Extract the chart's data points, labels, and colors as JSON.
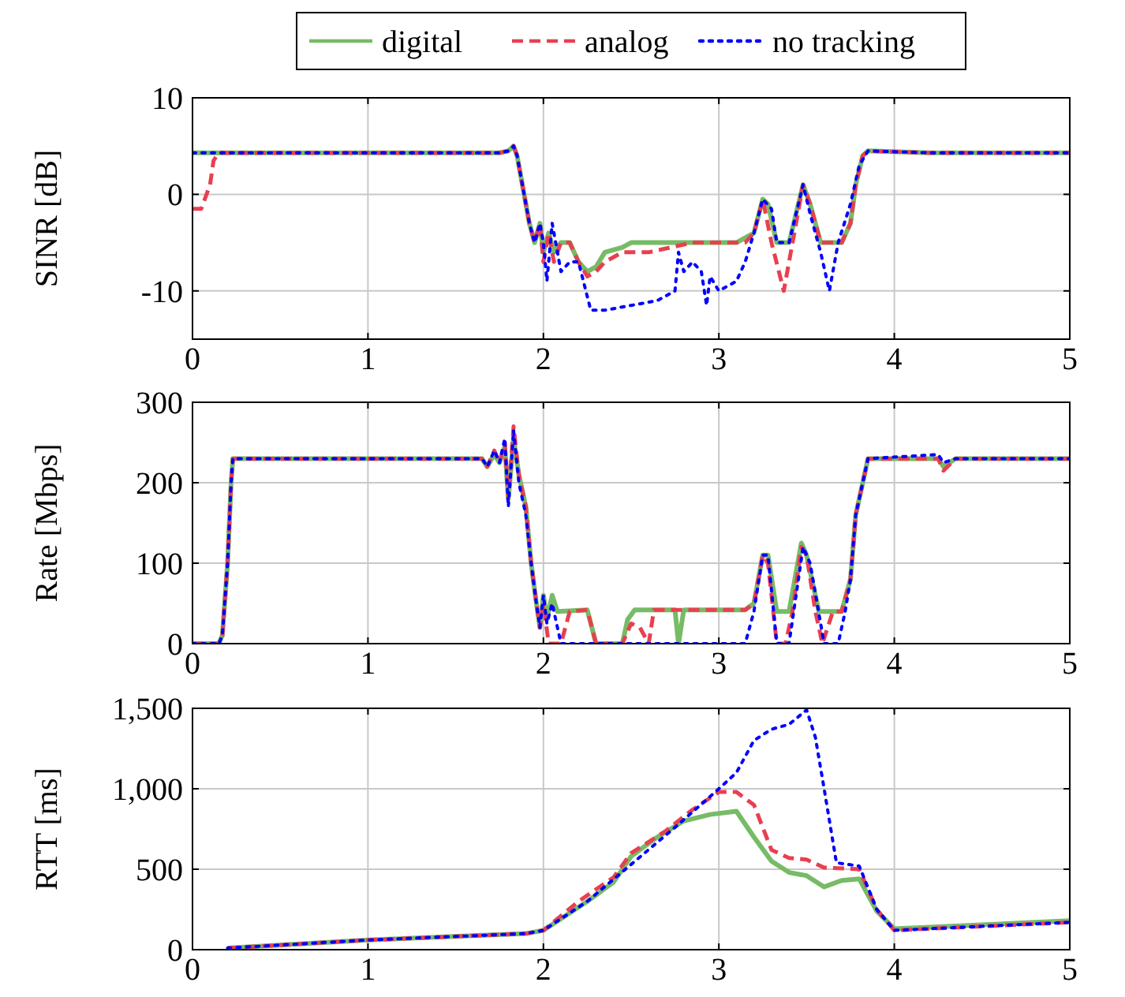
{
  "chart_data": [
    {
      "type": "line",
      "ylabel": "SINR [dB]",
      "xlim": [
        0,
        5
      ],
      "ylim": [
        -15,
        10
      ],
      "xticks": [
        0,
        1,
        2,
        3,
        4,
        5
      ],
      "yticks": [
        -10,
        0,
        10
      ],
      "grid": true,
      "legend": "top",
      "marker": "none",
      "series": [
        {
          "name": "digital",
          "color": "#77bb66",
          "line_style": "solid",
          "x": [
            0,
            0.3,
            0.6,
            0.9,
            1.2,
            1.5,
            1.75,
            1.8,
            1.83,
            1.85,
            1.88,
            1.92,
            1.95,
            1.98,
            2.0,
            2.03,
            2.06,
            2.1,
            2.15,
            2.2,
            2.25,
            2.3,
            2.35,
            2.45,
            2.5,
            2.6,
            2.8,
            3.0,
            3.1,
            3.2,
            3.25,
            3.28,
            3.33,
            3.4,
            3.48,
            3.52,
            3.58,
            3.7,
            3.75,
            3.78,
            3.82,
            3.85,
            4.2,
            4.6,
            5
          ],
          "values": [
            4.3,
            4.3,
            4.3,
            4.3,
            4.3,
            4.3,
            4.3,
            4.5,
            5,
            4,
            1,
            -3,
            -5,
            -3,
            -6,
            -4,
            -6,
            -5,
            -5,
            -7,
            -8,
            -7.5,
            -6,
            -5.5,
            -5,
            -5,
            -5,
            -5,
            -5,
            -4,
            -0.5,
            -1,
            -5,
            -5,
            1,
            -1,
            -5,
            -5,
            -3,
            1,
            4,
            4.5,
            4.3,
            4.3,
            4.3
          ]
        },
        {
          "name": "analog",
          "color": "#e8404f",
          "line_style": "dashed",
          "x": [
            0,
            0.05,
            0.08,
            0.1,
            0.12,
            0.15,
            0.5,
            1,
            1.5,
            1.75,
            1.8,
            1.83,
            1.85,
            1.88,
            1.92,
            1.95,
            1.98,
            2.0,
            2.03,
            2.06,
            2.1,
            2.15,
            2.2,
            2.25,
            2.3,
            2.35,
            2.45,
            2.5,
            2.6,
            2.85,
            3.0,
            3.15,
            3.2,
            3.25,
            3.3,
            3.37,
            3.42,
            3.48,
            3.52,
            3.58,
            3.7,
            3.75,
            3.78,
            3.82,
            3.85,
            4.2,
            4.6,
            5
          ],
          "values": [
            -1.5,
            -1.5,
            0,
            1,
            3.5,
            4.3,
            4.3,
            4.3,
            4.3,
            4.3,
            4.5,
            5,
            4,
            1,
            -3,
            -5,
            -3,
            -7,
            -4,
            -7,
            -5,
            -5,
            -7,
            -8.5,
            -8,
            -7,
            -6,
            -6,
            -6,
            -5,
            -5,
            -5,
            -4,
            -0.5,
            -5,
            -10,
            -5,
            1,
            -1,
            -5,
            -5,
            -3,
            1,
            4,
            4.5,
            4.3,
            4.3,
            4.3
          ]
        },
        {
          "name": "no tracking",
          "color": "#0000ff",
          "line_style": "dotted",
          "x": [
            0,
            0.5,
            1,
            1.5,
            1.75,
            1.8,
            1.83,
            1.85,
            1.88,
            1.92,
            1.95,
            1.98,
            2.0,
            2.02,
            2.05,
            2.1,
            2.15,
            2.2,
            2.27,
            2.35,
            2.5,
            2.65,
            2.75,
            2.77,
            2.8,
            2.85,
            2.9,
            2.93,
            2.95,
            3.0,
            3.1,
            3.15,
            3.2,
            3.25,
            3.3,
            3.33,
            3.4,
            3.48,
            3.52,
            3.58,
            3.63,
            3.68,
            3.75,
            3.8,
            3.85,
            4.2,
            4.6,
            5
          ],
          "values": [
            4.3,
            4.3,
            4.3,
            4.3,
            4.3,
            4.5,
            5,
            4,
            1,
            -3,
            -5,
            -3,
            -5,
            -9,
            -3,
            -8,
            -7,
            -7,
            -12,
            -12,
            -11.5,
            -11,
            -10,
            -6,
            -8,
            -7,
            -8,
            -11.5,
            -8.5,
            -10,
            -9,
            -7,
            -4,
            -0.5,
            -1.5,
            -5,
            -5,
            1,
            -2,
            -6,
            -10,
            -5,
            -1,
            3,
            4.5,
            4.3,
            4.3,
            4.3
          ]
        }
      ]
    },
    {
      "type": "line",
      "ylabel": "Rate [Mbps]",
      "xlim": [
        0,
        5
      ],
      "ylim": [
        0,
        300
      ],
      "xticks": [
        0,
        1,
        2,
        3,
        4,
        5
      ],
      "yticks": [
        0,
        100,
        200,
        300
      ],
      "grid": true,
      "marker": "none",
      "series": [
        {
          "color": "#77bb66",
          "line_style": "solid",
          "x": [
            0,
            0.15,
            0.17,
            0.2,
            0.22,
            0.23,
            0.6,
            1,
            1.4,
            1.65,
            1.68,
            1.72,
            1.75,
            1.78,
            1.8,
            1.83,
            1.86,
            1.9,
            1.93,
            1.96,
            1.98,
            2.0,
            2.02,
            2.05,
            2.08,
            2.25,
            2.3,
            2.45,
            2.48,
            2.52,
            2.75,
            2.77,
            2.8,
            3.15,
            3.2,
            3.25,
            3.28,
            3.33,
            3.4,
            3.47,
            3.5,
            3.57,
            3.7,
            3.75,
            3.78,
            3.82,
            3.85,
            4.25,
            4.28,
            4.35,
            5
          ],
          "values": [
            0,
            0,
            10,
            100,
            200,
            230,
            230,
            230,
            230,
            230,
            220,
            235,
            225,
            245,
            180,
            255,
            210,
            170,
            100,
            50,
            20,
            60,
            30,
            60,
            40,
            42,
            0,
            0,
            30,
            42,
            42,
            0,
            42,
            42,
            50,
            110,
            110,
            40,
            40,
            125,
            110,
            40,
            40,
            80,
            160,
            200,
            230,
            230,
            220,
            230,
            230
          ]
        },
        {
          "color": "#e8404f",
          "line_style": "dashed",
          "x": [
            0,
            0.15,
            0.17,
            0.2,
            0.22,
            0.23,
            0.6,
            1,
            1.4,
            1.65,
            1.68,
            1.72,
            1.75,
            1.78,
            1.8,
            1.83,
            1.86,
            1.9,
            1.93,
            1.96,
            1.98,
            2.0,
            2.03,
            2.1,
            2.15,
            2.25,
            2.3,
            2.45,
            2.5,
            2.55,
            2.6,
            2.63,
            3.15,
            3.2,
            3.25,
            3.28,
            3.33,
            3.38,
            3.42,
            3.47,
            3.5,
            3.55,
            3.59,
            3.65,
            3.7,
            3.75,
            3.78,
            3.82,
            3.85,
            4.25,
            4.28,
            4.35,
            5
          ],
          "values": [
            0,
            0,
            10,
            100,
            200,
            230,
            230,
            230,
            230,
            230,
            220,
            240,
            225,
            250,
            180,
            270,
            210,
            170,
            100,
            50,
            20,
            50,
            0,
            0,
            40,
            42,
            0,
            0,
            25,
            20,
            0,
            42,
            42,
            50,
            110,
            100,
            0,
            0,
            40,
            120,
            110,
            40,
            0,
            40,
            40,
            80,
            160,
            200,
            230,
            230,
            215,
            230,
            230
          ]
        },
        {
          "color": "#0000ff",
          "line_style": "dotted",
          "x": [
            0,
            0.15,
            0.17,
            0.2,
            0.22,
            0.23,
            0.6,
            1,
            1.4,
            1.65,
            1.68,
            1.72,
            1.75,
            1.78,
            1.8,
            1.83,
            1.86,
            1.9,
            1.93,
            1.96,
            1.98,
            2.0,
            2.02,
            2.05,
            2.08,
            2.1,
            3.15,
            3.2,
            3.25,
            3.28,
            3.33,
            3.4,
            3.48,
            3.52,
            3.6,
            3.68,
            3.72,
            3.75,
            3.78,
            3.82,
            3.85,
            4.25,
            4.28,
            4.35,
            5
          ],
          "values": [
            0,
            0,
            10,
            100,
            200,
            230,
            230,
            230,
            230,
            230,
            220,
            240,
            225,
            255,
            170,
            265,
            200,
            160,
            100,
            50,
            20,
            60,
            25,
            50,
            20,
            0,
            0,
            40,
            110,
            110,
            0,
            0,
            120,
            100,
            0,
            0,
            40,
            80,
            160,
            200,
            230,
            235,
            225,
            230,
            230
          ]
        }
      ]
    },
    {
      "type": "line",
      "ylabel": "RTT [ms]",
      "xlim": [
        0,
        5
      ],
      "ylim": [
        0,
        1500
      ],
      "xticks": [
        0,
        1,
        2,
        3,
        4,
        5
      ],
      "yticks": [
        0,
        500,
        {
          "value": 1000,
          "label": "1,000"
        },
        {
          "value": 1500,
          "label": "1,500"
        }
      ],
      "grid": true,
      "marker": "none",
      "series": [
        {
          "color": "#77bb66",
          "line_style": "solid",
          "x": [
            0.2,
            1,
            1.9,
            2.0,
            2.25,
            2.4,
            2.5,
            2.65,
            2.8,
            2.95,
            3.1,
            3.2,
            3.3,
            3.4,
            3.5,
            3.6,
            3.7,
            3.8,
            3.9,
            4.0,
            5
          ],
          "values": [
            10,
            60,
            100,
            120,
            300,
            420,
            580,
            700,
            800,
            840,
            860,
            700,
            550,
            480,
            460,
            390,
            430,
            440,
            240,
            130,
            180
          ]
        },
        {
          "color": "#e8404f",
          "line_style": "dashed",
          "x": [
            0.2,
            1,
            1.9,
            2.0,
            2.2,
            2.4,
            2.5,
            2.7,
            2.85,
            3.0,
            3.1,
            3.2,
            3.3,
            3.4,
            3.5,
            3.6,
            3.8,
            3.9,
            4.0,
            5
          ],
          "values": [
            10,
            60,
            100,
            120,
            300,
            450,
            600,
            740,
            870,
            980,
            980,
            900,
            620,
            570,
            560,
            510,
            500,
            250,
            120,
            170
          ]
        },
        {
          "color": "#0000ff",
          "line_style": "dotted",
          "x": [
            0.2,
            1,
            1.9,
            2.0,
            2.25,
            2.5,
            2.75,
            3.0,
            3.1,
            3.2,
            3.3,
            3.4,
            3.5,
            3.55,
            3.6,
            3.67,
            3.8,
            3.9,
            4.0,
            5
          ],
          "values": [
            10,
            60,
            100,
            120,
            300,
            530,
            760,
            1000,
            1100,
            1300,
            1370,
            1400,
            1490,
            1320,
            1000,
            540,
            520,
            250,
            120,
            170
          ]
        }
      ]
    }
  ]
}
